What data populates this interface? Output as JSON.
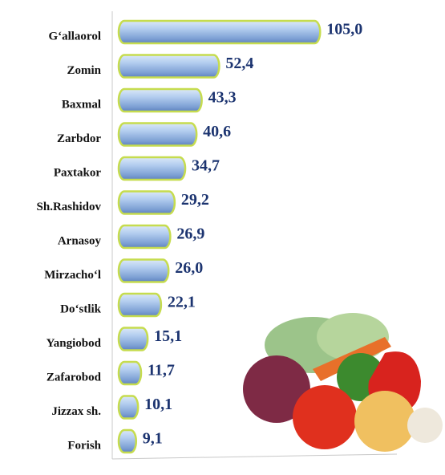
{
  "chart_data": {
    "type": "bar",
    "orientation": "horizontal",
    "categories": [
      "G‘allaorol",
      "Zomin",
      "Baxmal",
      "Zarbdor",
      "Paxtakor",
      "Sh.Rashidov",
      "Arnasoy",
      "Mirzacho‘l",
      "Do‘stlik",
      "Yangiobod",
      "Zafarobod",
      "Jizzax sh.",
      "Forish"
    ],
    "values": [
      105.0,
      52.4,
      43.3,
      40.6,
      34.7,
      29.2,
      26.9,
      26.0,
      22.1,
      15.1,
      11.7,
      10.1,
      9.1
    ],
    "value_labels": [
      "105,0",
      "52,4",
      "43,3",
      "40,6",
      "34,7",
      "29,2",
      "26,9",
      "26,0",
      "22,1",
      "15,1",
      "11,7",
      "10,1",
      "9,1"
    ],
    "color": "#9fbfe8",
    "xlim": [
      0,
      145
    ]
  }
}
